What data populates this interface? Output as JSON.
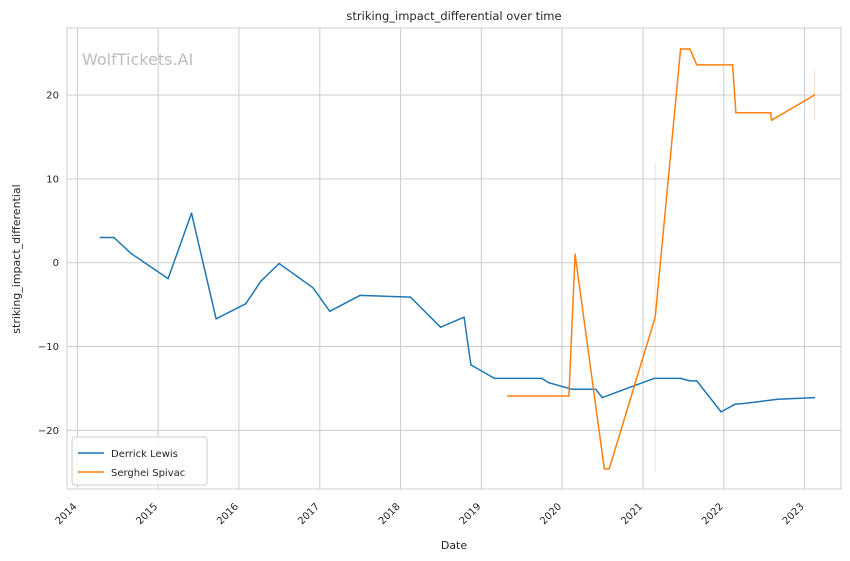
{
  "chart_data": {
    "type": "line",
    "title": "striking_impact_differential over time",
    "xlabel": "Date",
    "ylabel": "striking_impact_differential",
    "watermark": "WolfTickets.AI",
    "xlim": [
      "2013-11-15",
      "2023-06-15"
    ],
    "ylim": [
      -27,
      28
    ],
    "x_ticks": [
      "2014",
      "2015",
      "2016",
      "2017",
      "2018",
      "2019",
      "2020",
      "2021",
      "2022",
      "2023"
    ],
    "y_ticks": [
      -20,
      -10,
      0,
      10,
      20
    ],
    "grid": true,
    "legend_position": "lower-left",
    "series": [
      {
        "name": "Derrick Lewis",
        "color": "#1f77b4",
        "points": [
          [
            "2014-04-15",
            3.0
          ],
          [
            "2014-06-15",
            3.0
          ],
          [
            "2014-09-01",
            1.1
          ],
          [
            "2015-02-15",
            -1.9
          ],
          [
            "2015-06-01",
            5.9
          ],
          [
            "2015-09-20",
            -6.7
          ],
          [
            "2016-02-01",
            -4.9
          ],
          [
            "2016-04-10",
            -2.2
          ],
          [
            "2016-07-01",
            -0.1
          ],
          [
            "2016-12-01",
            -3.0
          ],
          [
            "2017-02-15",
            -5.8
          ],
          [
            "2017-07-01",
            -3.9
          ],
          [
            "2018-02-15",
            -4.1
          ],
          [
            "2018-07-01",
            -7.7
          ],
          [
            "2018-10-15",
            -6.5
          ],
          [
            "2018-11-15",
            -12.2
          ],
          [
            "2019-03-01",
            -13.8
          ],
          [
            "2019-10-01",
            -13.8
          ],
          [
            "2019-11-01",
            -14.3
          ],
          [
            "2020-02-15",
            -15.1
          ],
          [
            "2020-06-01",
            -15.1
          ],
          [
            "2020-07-01",
            -16.1
          ],
          [
            "2021-02-20",
            -13.8
          ],
          [
            "2021-06-20",
            -13.8
          ],
          [
            "2021-08-01",
            -14.1
          ],
          [
            "2021-09-01",
            -14.1
          ],
          [
            "2021-12-20",
            -17.8
          ],
          [
            "2022-02-20",
            -16.9
          ],
          [
            "2022-04-01",
            -16.8
          ],
          [
            "2022-09-01",
            -16.3
          ],
          [
            "2023-02-15",
            -16.1
          ]
        ]
      },
      {
        "name": "Serghei Spivac",
        "color": "#ff7f0e",
        "points": [
          [
            "2019-05-01",
            -15.9
          ],
          [
            "2020-02-01",
            -15.9
          ],
          [
            "2020-02-29",
            1.0
          ],
          [
            "2020-07-10",
            -24.6
          ],
          [
            "2020-08-01",
            -24.6
          ],
          [
            "2021-02-25",
            -6.5
          ],
          [
            "2021-06-20",
            25.5
          ],
          [
            "2021-08-01",
            25.5
          ],
          [
            "2021-09-01",
            23.6
          ],
          [
            "2022-02-10",
            23.6
          ],
          [
            "2022-02-25",
            17.9
          ],
          [
            "2022-08-01",
            17.9
          ],
          [
            "2022-08-05",
            17.0
          ],
          [
            "2023-02-15",
            20.0
          ]
        ],
        "spikes": [
          {
            "date": "2021-02-25",
            "low": -25.0,
            "high": 12.0
          },
          {
            "date": "2023-02-15",
            "low": 17.0,
            "high": 23.0
          }
        ]
      }
    ]
  }
}
